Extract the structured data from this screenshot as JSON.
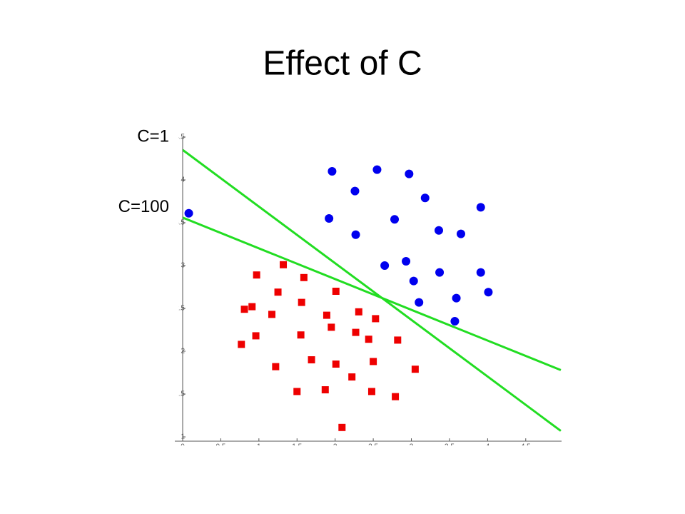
{
  "chart_data": {
    "type": "scatter",
    "title": "Effect of C",
    "xlim": [
      0,
      4.97
    ],
    "ylim": [
      0.95,
      4.5
    ],
    "xticks": [
      0,
      0.5,
      1,
      1.5,
      2,
      2.5,
      3,
      3.5,
      4,
      4.5
    ],
    "yticks": [
      1,
      1.5,
      2,
      2.5,
      3,
      3.5,
      4,
      4.5
    ],
    "series": [
      {
        "color": "#0000ee",
        "marker": "circle",
        "x": [
          0.08,
          1.96,
          2.55,
          2.97,
          2.26,
          3.18,
          3.91,
          1.92,
          2.78,
          2.27,
          3.36,
          3.65,
          2.65,
          2.93,
          3.03,
          3.37,
          3.91,
          4.01,
          3.1,
          3.59,
          3.57
        ],
        "values": [
          3.61,
          4.1,
          4.12,
          4.07,
          3.87,
          3.79,
          3.68,
          3.55,
          3.54,
          3.36,
          3.41,
          3.37,
          3.0,
          3.05,
          2.82,
          2.92,
          2.92,
          2.69,
          2.57,
          2.62,
          2.35
        ]
      },
      {
        "color": "#ee0000",
        "marker": "square",
        "x": [
          1.32,
          0.97,
          1.59,
          1.25,
          2.01,
          0.81,
          0.91,
          1.56,
          1.17,
          1.89,
          2.31,
          2.53,
          1.95,
          0.96,
          1.55,
          2.27,
          2.44,
          2.82,
          0.77,
          1.69,
          2.01,
          2.5,
          1.22,
          3.05,
          2.22,
          1.5,
          1.87,
          2.48,
          2.79,
          2.09
        ],
        "values": [
          3.01,
          2.89,
          2.86,
          2.69,
          2.7,
          2.49,
          2.52,
          2.57,
          2.43,
          2.42,
          2.46,
          2.38,
          2.28,
          2.18,
          2.19,
          2.22,
          2.14,
          2.13,
          2.08,
          1.9,
          1.85,
          1.88,
          1.82,
          1.79,
          1.7,
          1.53,
          1.55,
          1.53,
          1.47,
          1.11
        ]
      }
    ],
    "lines": [
      {
        "label": "C=1",
        "color": "#22dd22",
        "x": [
          0,
          4.96
        ],
        "values": [
          4.35,
          1.07
        ]
      },
      {
        "label": "C=100",
        "color": "#22dd22",
        "x": [
          0,
          4.96
        ],
        "values": [
          3.56,
          1.78
        ]
      }
    ]
  }
}
